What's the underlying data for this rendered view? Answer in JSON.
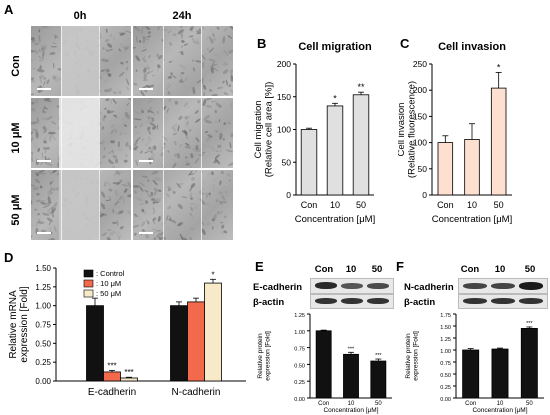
{
  "panels": {
    "a": "A",
    "b": "B",
    "c": "C",
    "d": "D",
    "e": "E",
    "f": "F"
  },
  "panel_a": {
    "col_heads": [
      "0h",
      "24h"
    ],
    "row_heads": [
      "Con",
      "10 μM",
      "50 μM"
    ]
  },
  "chart_data": [
    {
      "id": "B",
      "type": "bar",
      "title": "Cell migration",
      "xlabel": "Concentration [μM]",
      "ylabel": "Cell migration\n(Relative cell area [%])",
      "categories": [
        "Con",
        "10",
        "50"
      ],
      "values": [
        100,
        136,
        153
      ],
      "errors": [
        2,
        4,
        4
      ],
      "significance": [
        "",
        "*",
        "**"
      ],
      "ylim": [
        0,
        200
      ],
      "yticks": [
        0,
        50,
        100,
        150,
        200
      ],
      "color": "#e0e0e0"
    },
    {
      "id": "C",
      "type": "bar",
      "title": "Cell invasion",
      "xlabel": "Concentration [μM]",
      "ylabel": "Cell invasion\n(Relative fluorescence)",
      "categories": [
        "Con",
        "10",
        "50"
      ],
      "values": [
        100,
        106,
        204
      ],
      "errors": [
        13,
        30,
        30
      ],
      "significance": [
        "",
        "",
        "*"
      ],
      "ylim": [
        0,
        250
      ],
      "yticks": [
        0,
        50,
        100,
        150,
        200,
        250
      ],
      "color": "#fde0d0"
    },
    {
      "id": "D",
      "type": "bar",
      "ylabel": "Relative mRNA\nexpression [Fold]",
      "categories": [
        "E-cadherin",
        "N-cadherin"
      ],
      "series": [
        {
          "name": ": Control",
          "values": [
            1.0,
            1.0
          ],
          "errors": [
            0.1,
            0.05
          ],
          "significance": [
            "",
            ""
          ],
          "color": "#111111"
        },
        {
          "name": ": 10 μM",
          "values": [
            0.12,
            1.05
          ],
          "errors": [
            0.02,
            0.05
          ],
          "significance": [
            "***",
            ""
          ],
          "color": "#f26a4b"
        },
        {
          "name": ": 50 μM",
          "values": [
            0.04,
            1.3
          ],
          "errors": [
            0.01,
            0.05
          ],
          "significance": [
            "***",
            "*"
          ],
          "color": "#f8e9c8"
        }
      ],
      "ylim": [
        0,
        1.5
      ],
      "yticks": [
        0.0,
        0.25,
        0.5,
        0.75,
        1.0,
        1.25,
        1.5
      ],
      "legend": "top-left"
    },
    {
      "id": "E",
      "type": "bar",
      "ylabel": "Relative protein\nexpression [Fold]",
      "xlabel": "Concentration [μM]",
      "categories": [
        "Con",
        "10",
        "50"
      ],
      "values": [
        1.0,
        0.65,
        0.55
      ],
      "errors": [
        0.01,
        0.03,
        0.03
      ],
      "significance": [
        "",
        "***",
        "***"
      ],
      "ylim": [
        0,
        1.25
      ],
      "yticks": [
        0.0,
        0.25,
        0.5,
        0.75,
        1.0,
        1.25
      ],
      "color": "#111111"
    },
    {
      "id": "F",
      "type": "bar",
      "ylabel": "Relative protein\nexpression [Fold]",
      "xlabel": "Concentration [μM]",
      "categories": [
        "Con",
        "10",
        "50"
      ],
      "values": [
        1.0,
        1.02,
        1.45
      ],
      "errors": [
        0.03,
        0.02,
        0.03
      ],
      "significance": [
        "",
        "",
        "***"
      ],
      "ylim": [
        0,
        1.75
      ],
      "yticks": [
        0.0,
        0.25,
        0.5,
        0.75,
        1.0,
        1.25,
        1.5,
        1.75
      ],
      "color": "#111111"
    }
  ],
  "blots": {
    "e": {
      "heads": [
        "Con",
        "10",
        "50"
      ],
      "rows": [
        "E-cadherin",
        "β-actin"
      ]
    },
    "f": {
      "heads": [
        "Con",
        "10",
        "50"
      ],
      "rows": [
        "N-cadherin",
        "β-actin"
      ]
    }
  }
}
